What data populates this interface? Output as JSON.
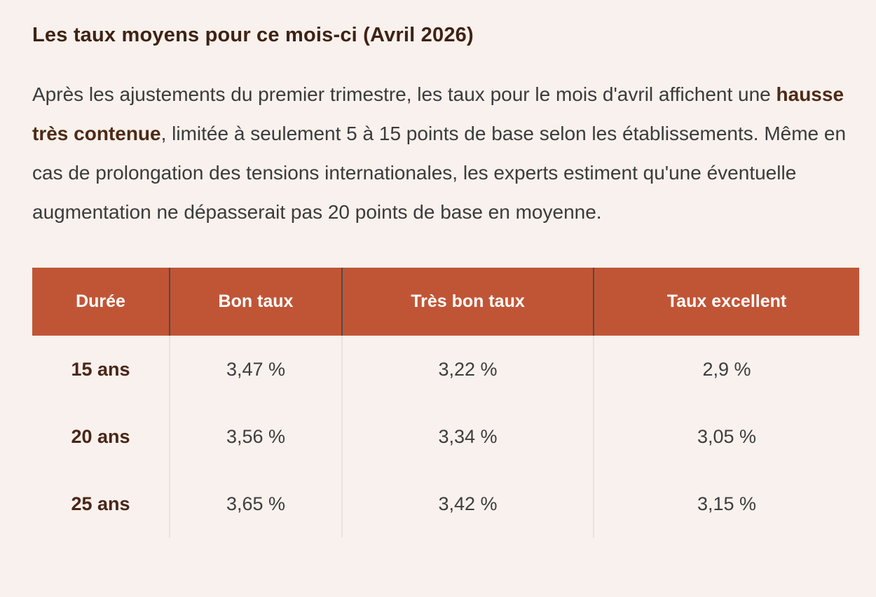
{
  "colors": {
    "page_background": "#f8f1ed",
    "accent_header": "#c05536",
    "heading_text": "#3f2212",
    "body_text": "#3b3b3b",
    "row_label_text": "#4a2517",
    "header_text": "#ffffff"
  },
  "heading": "Les taux moyens pour ce mois-ci (Avril 2026)",
  "paragraph": {
    "before_bold": "Après les ajustements du premier trimestre, les taux pour le mois d'avril affichent une ",
    "bold": "hausse très contenue",
    "after_bold": ", limitée à seulement 5 à 15 points de base selon les établissements. Même en cas de prolongation des tensions internationales, les experts estiment qu'une éventuelle augmentation ne dépasserait pas 20 points de base en moyenne."
  },
  "table": {
    "headers": [
      "Durée",
      "Bon taux",
      "Très bon taux",
      "Taux excellent"
    ],
    "rows": [
      {
        "duration": "15 ans",
        "values": [
          "3,47 %",
          "3,22 %",
          "2,9 %"
        ]
      },
      {
        "duration": "20 ans",
        "values": [
          "3,56 %",
          "3,34 %",
          "3,05 %"
        ]
      },
      {
        "duration": "25 ans",
        "values": [
          "3,65 %",
          "3,42 %",
          "3,15 %"
        ]
      }
    ]
  }
}
